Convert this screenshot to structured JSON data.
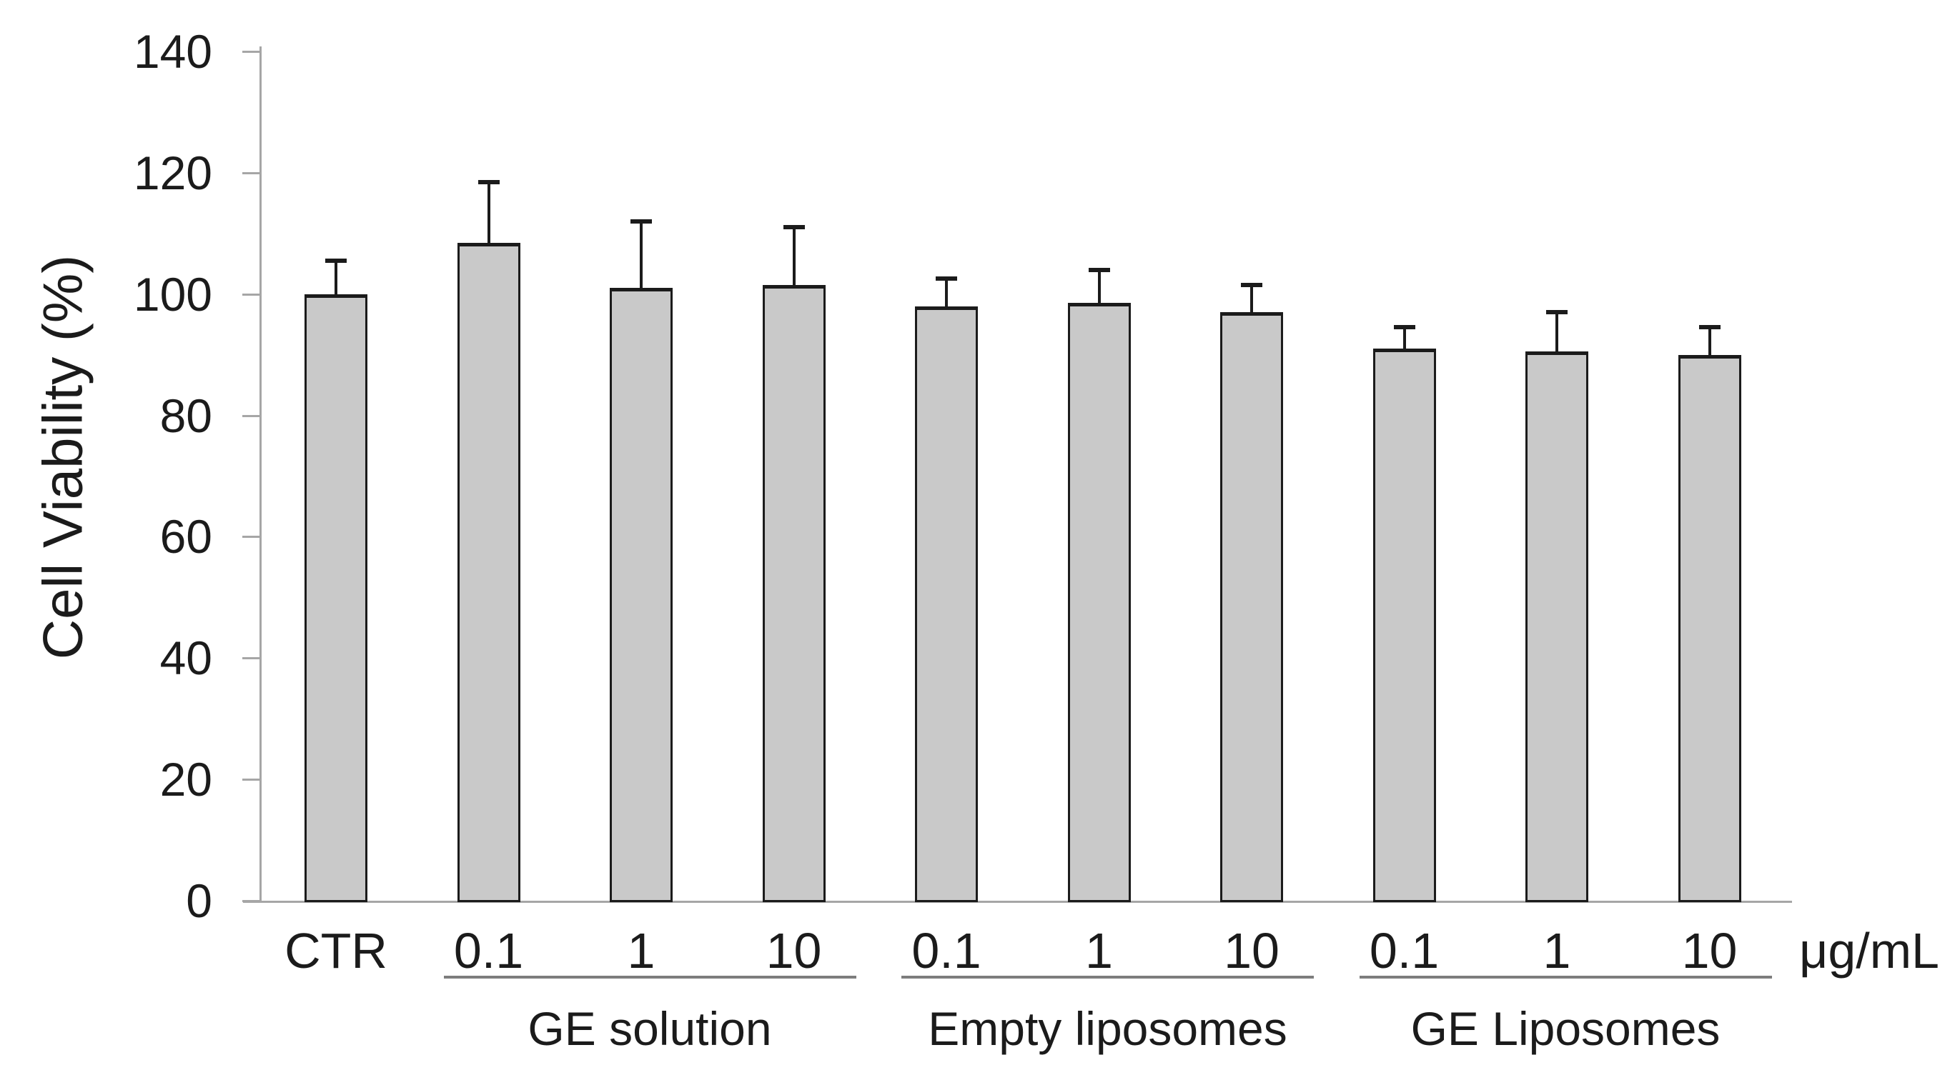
{
  "chart_data": {
    "type": "bar",
    "title": "",
    "ylabel": "Cell Viability (%)",
    "xlabel": "",
    "x_unit_label": "μg/mL",
    "ylim": [
      0,
      140
    ],
    "yticks": [
      0,
      20,
      40,
      60,
      80,
      100,
      120,
      140
    ],
    "grid": false,
    "legend_position": "none",
    "error_bars": "upper-only",
    "bar_fill_color": "#c9c9c9",
    "bar_border_color": "#1b1b1b",
    "axis_color": "#a6a6a6",
    "group_rule_color": "#7d7d7d",
    "text_color": "#1b1b1b",
    "categories": [
      "CTR",
      "0.1",
      "1",
      "10",
      "0.1",
      "1",
      "10",
      "0.1",
      "1",
      "10"
    ],
    "values": [
      100,
      108.5,
      101,
      101.5,
      98,
      98.5,
      97,
      91,
      90.5,
      90
    ],
    "errors_plus": [
      5.5,
      10,
      11,
      9.5,
      4.5,
      5.5,
      4.5,
      3.5,
      6.5,
      4.5
    ],
    "bars": [
      {
        "label": "CTR",
        "group": null,
        "value": 100,
        "error_plus": 5.5
      },
      {
        "label": "0.1",
        "group": "GE solution",
        "value": 108.5,
        "error_plus": 10
      },
      {
        "label": "1",
        "group": "GE solution",
        "value": 101,
        "error_plus": 11
      },
      {
        "label": "10",
        "group": "GE solution",
        "value": 101.5,
        "error_plus": 9.5
      },
      {
        "label": "0.1",
        "group": "Empty liposomes",
        "value": 98,
        "error_plus": 4.5
      },
      {
        "label": "1",
        "group": "Empty liposomes",
        "value": 98.5,
        "error_plus": 5.5
      },
      {
        "label": "10",
        "group": "Empty liposomes",
        "value": 97,
        "error_plus": 4.5
      },
      {
        "label": "0.1",
        "group": "GE Liposomes",
        "value": 91,
        "error_plus": 3.5
      },
      {
        "label": "1",
        "group": "GE Liposomes",
        "value": 90.5,
        "error_plus": 6.5
      },
      {
        "label": "10",
        "group": "GE Liposomes",
        "value": 90,
        "error_plus": 4.5
      }
    ],
    "groups": [
      {
        "label": "GE solution",
        "start_index": 1,
        "end_index": 3
      },
      {
        "label": "Empty liposomes",
        "start_index": 4,
        "end_index": 6
      },
      {
        "label": "GE Liposomes",
        "start_index": 7,
        "end_index": 9
      }
    ]
  }
}
